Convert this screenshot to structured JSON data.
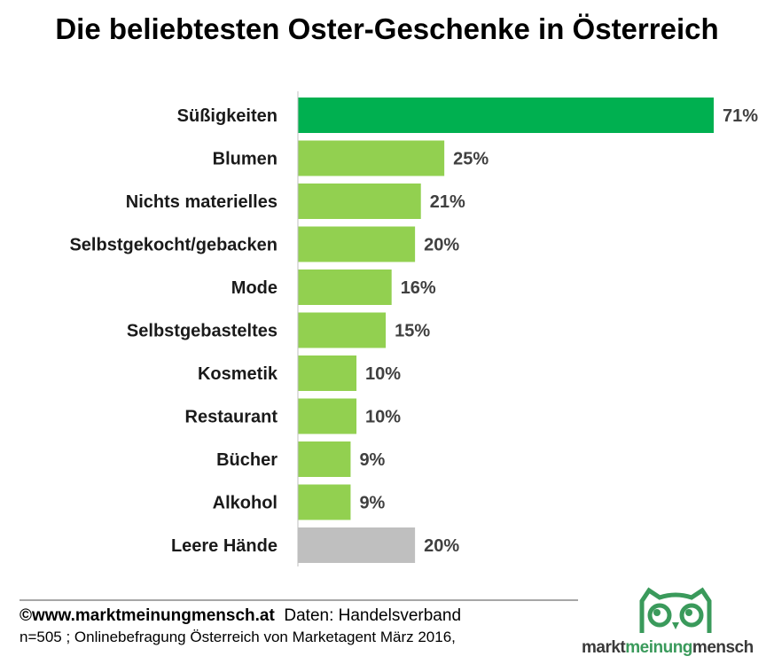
{
  "chart_data": {
    "type": "bar",
    "orientation": "horizontal",
    "title": "Die beliebtesten Oster-Geschenke in Österreich",
    "categories": [
      "Süßigkeiten",
      "Blumen",
      "Nichts materielles",
      "Selbstgekocht/gebacken",
      "Mode",
      "Selbstgebasteltes",
      "Kosmetik",
      "Restaurant",
      "Bücher",
      "Alkohol",
      "Leere Hände"
    ],
    "values": [
      71,
      25,
      21,
      20,
      16,
      15,
      10,
      10,
      9,
      9,
      20
    ],
    "value_labels": [
      "71%",
      "25%",
      "21%",
      "20%",
      "16%",
      "15%",
      "10%",
      "10%",
      "9%",
      "9%",
      "20%"
    ],
    "bar_colors": [
      "#00b050",
      "#92d050",
      "#92d050",
      "#92d050",
      "#92d050",
      "#92d050",
      "#92d050",
      "#92d050",
      "#92d050",
      "#92d050",
      "#bfbfbf"
    ],
    "xlabel": "",
    "ylabel": "",
    "xlim": [
      0,
      71
    ],
    "grid": false,
    "legend": "none"
  },
  "footer": {
    "source_bold": "©www.marktmeinungmensch.at",
    "source_data": "Daten: Handelsverband",
    "note": "n=505 ; Onlinebefragung Österreich von Marketagent März 2016,"
  },
  "logo": {
    "part1": "markt",
    "part2": "meinung",
    "part3": "mensch"
  }
}
